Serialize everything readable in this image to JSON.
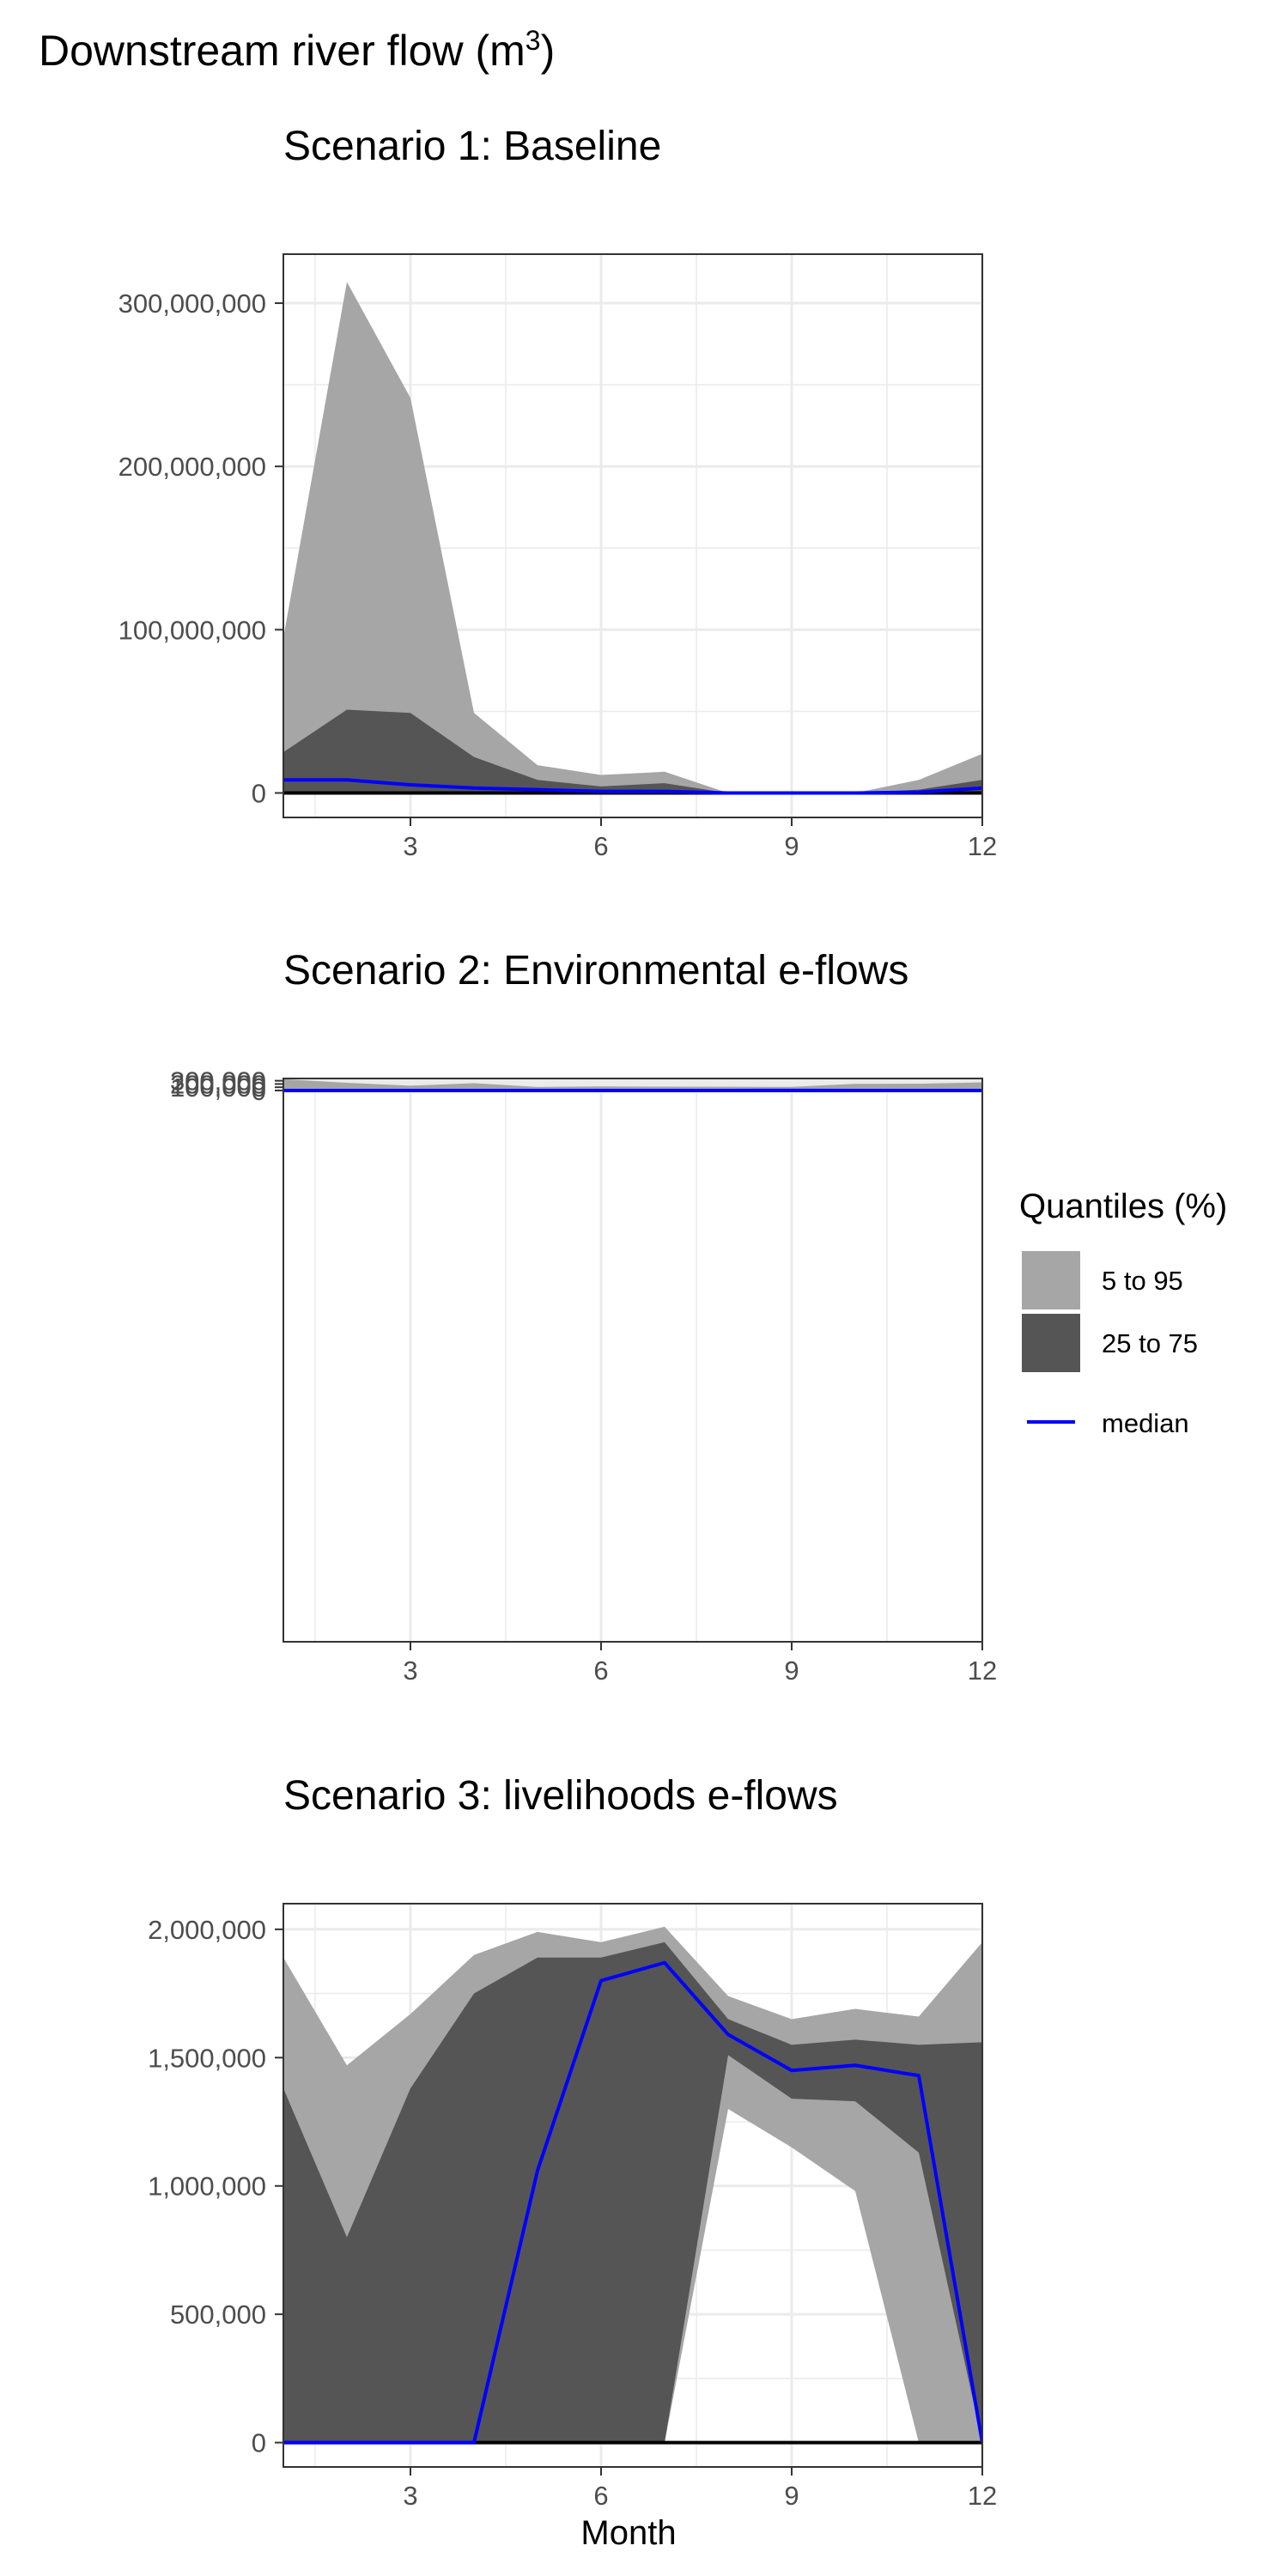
{
  "figure": {
    "title": "Downstream river flow",
    "title_unit_base": "m",
    "title_unit_exp": "3",
    "x_label": "Month"
  },
  "legend": {
    "title": "Quantiles (%)",
    "items": [
      {
        "label": "5 to 95",
        "kind": "fill",
        "color": "#a6a6a6"
      },
      {
        "label": "25 to 75",
        "kind": "fill",
        "color": "#555555"
      },
      {
        "label": "median",
        "kind": "line",
        "color": "#0000ff"
      }
    ]
  },
  "colors": {
    "q5_95": "#a6a6a6",
    "q25_75": "#555555",
    "median": "#0000ff",
    "zero_line": "#000000",
    "grid": "#ebebeb"
  },
  "chart_data": [
    {
      "type": "area",
      "title": "Scenario 1: Baseline",
      "x": [
        1,
        2,
        3,
        4,
        5,
        6,
        7,
        8,
        9,
        10,
        11,
        12
      ],
      "xlim": [
        1,
        12
      ],
      "x_ticks": [
        3,
        6,
        9,
        12
      ],
      "ylim": [
        -15000000,
        330000000
      ],
      "y_ticks": [
        0,
        100000000,
        200000000,
        300000000
      ],
      "y_tick_labels": [
        "0",
        "100,000,000",
        "200,000,000",
        "300,000,000"
      ],
      "grid": true,
      "series": [
        {
          "name": "5 to 95",
          "low": [
            0,
            0,
            0,
            0,
            0,
            0,
            0,
            0,
            0,
            0,
            0,
            0
          ],
          "high": [
            95000000,
            313000000,
            242000000,
            49000000,
            17000000,
            11000000,
            13000000,
            0,
            0,
            0,
            8000000,
            24000000
          ]
        },
        {
          "name": "25 to 75",
          "low": [
            0,
            0,
            0,
            0,
            0,
            0,
            0,
            0,
            0,
            0,
            0,
            0
          ],
          "high": [
            25000000,
            51000000,
            49000000,
            22000000,
            8000000,
            4000000,
            6000000,
            0,
            0,
            0,
            2000000,
            8000000
          ]
        },
        {
          "name": "median",
          "values": [
            8000000,
            8000000,
            5000000,
            3000000,
            2000000,
            1000000,
            1000000,
            0,
            0,
            0,
            500000,
            3000000
          ]
        }
      ]
    },
    {
      "type": "area",
      "title": "Scenario 2: Environmental e-flows",
      "x": [
        1,
        2,
        3,
        4,
        5,
        6,
        7,
        8,
        9,
        10,
        11,
        12
      ],
      "xlim": [
        1,
        12
      ],
      "x_ticks": [
        3,
        6,
        9,
        12
      ],
      "ylim": [
        -17000000,
        370000
      ],
      "ylim_note": "",
      "y_ticks": [
        0,
        100000,
        200000,
        300000
      ],
      "y_tick_labels": [
        "0",
        "100,000",
        "200,000",
        "300,000"
      ],
      "grid": true,
      "series": [
        {
          "name": "5 to 95",
          "low": [
            0,
            0,
            0,
            0,
            0,
            0,
            0,
            0,
            0,
            0,
            0,
            0
          ],
          "high": [
            350000,
            237000,
            147000,
            224000,
            110000,
            124000,
            118000,
            114000,
            112000,
            205000,
            207000,
            252000
          ]
        },
        {
          "name": "25 to 75",
          "low": [
            0,
            0,
            0,
            0,
            0,
            0,
            0,
            0,
            0,
            0,
            0,
            0
          ],
          "high": [
            27000,
            0,
            0,
            31000,
            19000,
            34000,
            14000,
            36000,
            38000,
            43000,
            36000,
            6000
          ]
        },
        {
          "name": "median",
          "values": [
            0,
            0,
            0,
            0,
            0,
            0,
            0,
            0,
            2000,
            0,
            0,
            0
          ]
        }
      ]
    },
    {
      "type": "area",
      "title": "Scenario 3: livelihoods e-flows",
      "x": [
        1,
        2,
        3,
        4,
        5,
        6,
        7,
        8,
        9,
        10,
        11,
        12
      ],
      "xlim": [
        1,
        12
      ],
      "x_ticks": [
        3,
        6,
        9,
        12
      ],
      "ylim": [
        -95000,
        2100000
      ],
      "y_ticks": [
        0,
        500000,
        1000000,
        1500000,
        2000000
      ],
      "y_tick_labels": [
        "0",
        "500,000",
        "1,000,000",
        "1,500,000",
        "2,000,000"
      ],
      "grid": true,
      "series": [
        {
          "name": "5 to 95",
          "low": [
            0,
            0,
            0,
            0,
            0,
            0,
            0,
            1300000,
            1150000,
            980000,
            0,
            0
          ],
          "high": [
            1890000,
            1470000,
            1670000,
            1900000,
            1990000,
            1950000,
            2010000,
            1740000,
            1650000,
            1690000,
            1660000,
            1950000
          ]
        },
        {
          "name": "25 to 75",
          "low": [
            0,
            0,
            0,
            0,
            0,
            0,
            0,
            1510000,
            1340000,
            1330000,
            1130000,
            0
          ],
          "high": [
            1380000,
            800000,
            1380000,
            1750000,
            1890000,
            1890000,
            1950000,
            1650000,
            1550000,
            1570000,
            1550000,
            1560000
          ]
        },
        {
          "name": "median",
          "values": [
            0,
            0,
            0,
            0,
            1060000,
            1800000,
            1870000,
            1590000,
            1450000,
            1470000,
            1430000,
            0
          ]
        }
      ]
    }
  ]
}
